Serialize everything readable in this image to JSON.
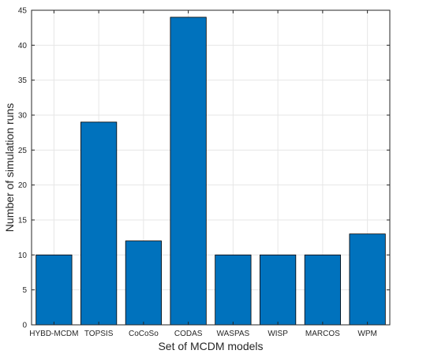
{
  "chart_data": {
    "type": "bar",
    "title": "",
    "xlabel": "Set of MCDM models",
    "ylabel": "Number of simulation runs",
    "categories": [
      "HYBD-MCDM",
      "TOPSIS",
      "CoCoSo",
      "CODAS",
      "WASPAS",
      "WISP",
      "MARCOS",
      "WPM"
    ],
    "values": [
      10,
      29,
      12,
      44,
      10,
      10,
      10,
      13
    ],
    "ylim": [
      0,
      45
    ],
    "yticks": [
      0,
      5,
      10,
      15,
      20,
      25,
      30,
      35,
      40,
      45
    ],
    "grid": true,
    "bar_color": "#0072bd"
  }
}
